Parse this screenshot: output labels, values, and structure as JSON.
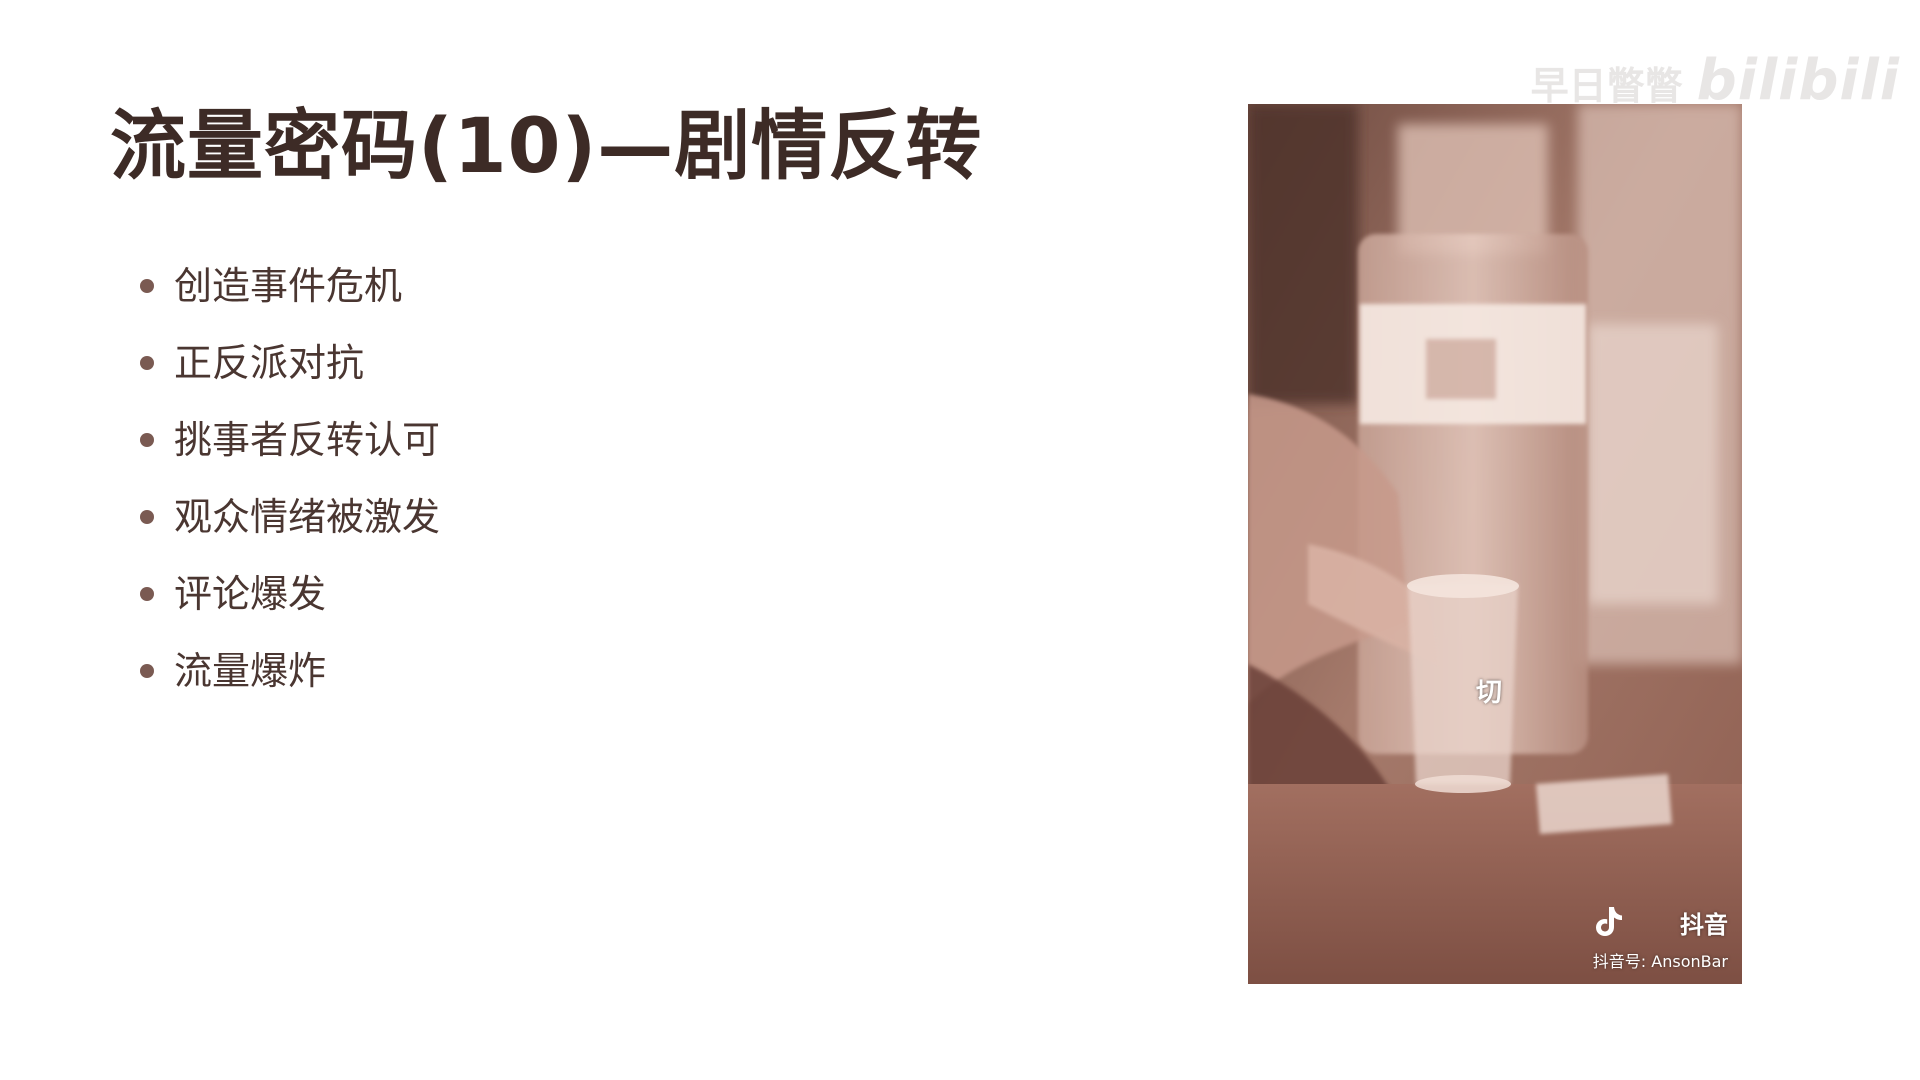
{
  "slide": {
    "title": "流量密码(10)—剧情反转",
    "bullets": [
      "创造事件危机",
      "正反派对抗",
      "挑事者反转认可",
      "观众情绪被激发",
      "评论爆发",
      "流量爆炸"
    ]
  },
  "watermark": {
    "user": "早日瞥瞥",
    "site": "bilibili"
  },
  "video": {
    "caption": "切",
    "brand": "抖音",
    "brand_icon": "tiktok-note-icon",
    "account": "抖音号: AnsonBar"
  },
  "colors": {
    "title": "#3d2b26",
    "text": "#4a3631",
    "bullet_dot": "#7a5a52",
    "video_tint": "#9a6b5d"
  }
}
